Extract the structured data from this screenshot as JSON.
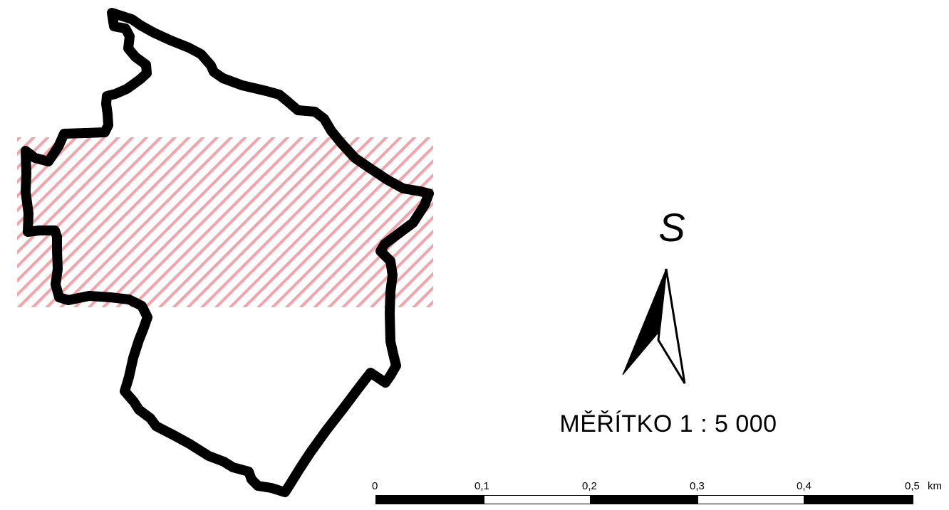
{
  "map": {
    "north_arrow": {
      "letter": "S",
      "icon": "north-arrow-icon"
    },
    "scale_label": "MĚŘÍTKO 1 : 5 000",
    "scale_bar": {
      "ticks": [
        "0",
        "0,1",
        "0,2",
        "0,3",
        "0,4",
        "0,5"
      ],
      "unit": "km",
      "segment_colors": [
        "#000000",
        "#ffffff",
        "#000000",
        "#ffffff",
        "#000000"
      ]
    },
    "colors": {
      "boundary": "#000000",
      "hatch": "#f4a3a8",
      "background": "#ffffff"
    }
  }
}
